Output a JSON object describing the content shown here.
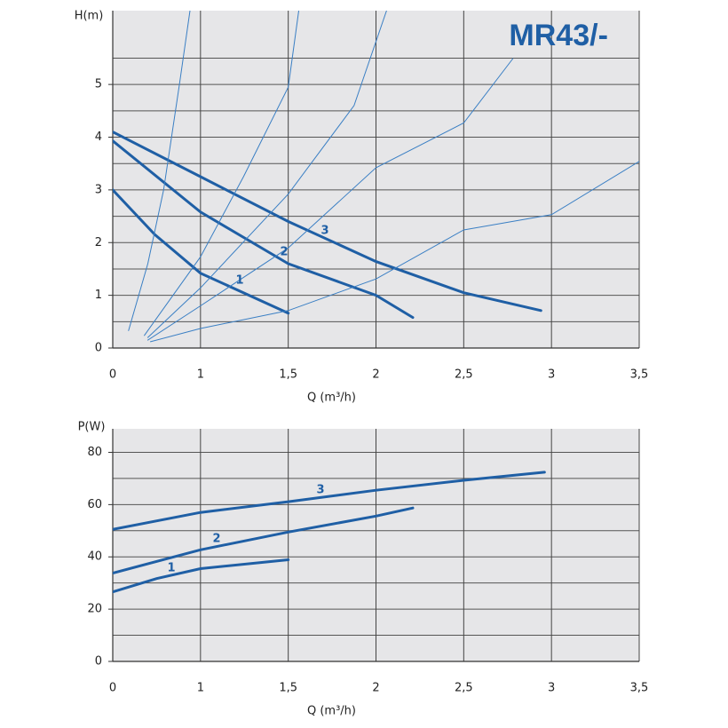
{
  "chart_data": [
    {
      "type": "line",
      "title": "MR43/-",
      "ylabel": "H(m)",
      "xlabel": "Q (m³/h)",
      "xlim": [
        0,
        3.5
      ],
      "ylim": [
        0,
        6.4
      ],
      "xticks": [
        0,
        1,
        {
          "value": 1.5,
          "label": "1,5"
        },
        2,
        {
          "value": 2.5,
          "label": "2,5"
        },
        3,
        {
          "value": 3.5,
          "label": "3,5"
        }
      ],
      "yticks": [
        0,
        1,
        2,
        3,
        4,
        5
      ],
      "grid": true,
      "series": [
        {
          "name": "1",
          "color": "#1f5fa5",
          "line_width": 3,
          "x": [
            0,
            0.48,
            1,
            1.5
          ],
          "values": [
            3.0,
            2.15,
            1.42,
            0.66
          ]
        },
        {
          "name": "2",
          "color": "#1f5fa5",
          "line_width": 3,
          "x": [
            0,
            1,
            1.5,
            2,
            2.21
          ],
          "values": [
            3.93,
            2.58,
            1.6,
            1.0,
            0.58
          ]
        },
        {
          "name": "3",
          "color": "#1f5fa5",
          "line_width": 3,
          "x": [
            0,
            1,
            1.5,
            2,
            2.5,
            2.94
          ],
          "values": [
            4.1,
            3.25,
            2.4,
            1.64,
            1.05,
            0.71
          ]
        },
        {
          "color": "#3a7fc4",
          "line_width": 1,
          "x": [
            0.18,
            0.4,
            0.58,
            0.76,
            0.88
          ],
          "values": [
            0.33,
            1.6,
            3,
            5,
            6.4
          ]
        },
        {
          "color": "#3a7fc4",
          "line_width": 1,
          "x": [
            0.36,
            1,
            1.245,
            1.5,
            1.56
          ],
          "values": [
            0.24,
            1.73,
            3.25,
            4.95,
            6.4
          ]
        },
        {
          "color": "#3a7fc4",
          "line_width": 1,
          "x": [
            0.4,
            1,
            1.5,
            1.875,
            2.06
          ],
          "values": [
            0.2,
            1.14,
            2.92,
            4.6,
            6.4
          ]
        },
        {
          "color": "#3a7fc4",
          "line_width": 1,
          "x": [
            0.4,
            1,
            1.5,
            2,
            2.5,
            2.78
          ],
          "values": [
            0.15,
            0.8,
            1.9,
            3.42,
            4.27,
            5.49
          ]
        },
        {
          "color": "#3a7fc4",
          "line_width": 1,
          "x": [
            0.43,
            1,
            1.5,
            2,
            2.5,
            3,
            3.5
          ],
          "values": [
            0.12,
            0.37,
            0.71,
            1.31,
            2.24,
            2.53,
            3.54
          ]
        }
      ]
    },
    {
      "type": "line",
      "ylabel": "P(W)",
      "xlabel": "Q (m³/h)",
      "xlim": [
        0,
        3.5
      ],
      "ylim": [
        0,
        89
      ],
      "xticks": [
        0,
        1,
        {
          "value": 1.5,
          "label": "1,5"
        },
        2,
        {
          "value": 2.5,
          "label": "2,5"
        },
        3,
        {
          "value": 3.5,
          "label": "3,5"
        }
      ],
      "yticks": [
        0,
        20,
        40,
        60,
        80
      ],
      "grid": true,
      "series": [
        {
          "name": "1",
          "color": "#1f5fa5",
          "line_width": 3,
          "x": [
            0,
            0.5,
            1,
            1.5
          ],
          "values": [
            26.6,
            31.7,
            35.5,
            38.9
          ]
        },
        {
          "name": "2",
          "color": "#1f5fa5",
          "line_width": 3,
          "x": [
            0,
            1,
            1.5,
            2,
            2.21
          ],
          "values": [
            33.8,
            42.7,
            49.5,
            55.6,
            58.7
          ]
        },
        {
          "name": "3",
          "color": "#1f5fa5",
          "line_width": 3,
          "x": [
            0,
            1,
            1.5,
            2,
            2.5,
            2.96
          ],
          "values": [
            50.5,
            57,
            61.1,
            65.5,
            69.3,
            72.4
          ]
        }
      ]
    }
  ]
}
